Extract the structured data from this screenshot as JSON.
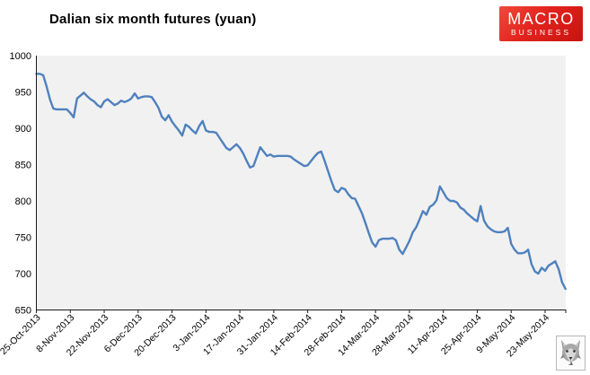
{
  "logo": {
    "line1": "MACRO",
    "line2": "BUSINESS",
    "bg_color": "#e2231d",
    "text_color": "#ffffff"
  },
  "corner_icon": "wolf-head-icon",
  "colors": {
    "line": "#4f81bd",
    "plot_background": "#f1f1f1",
    "axis": "#1a1a1a",
    "label_text": "#000000"
  },
  "chart_data": {
    "type": "line",
    "title": "Dalian six month futures (yuan)",
    "xlabel": "",
    "ylabel": "",
    "ylim": [
      650,
      1000
    ],
    "y_ticks": [
      650,
      700,
      750,
      800,
      850,
      900,
      950,
      1000
    ],
    "grid": false,
    "legend": false,
    "plot_bg": "#f1f1f1",
    "x_tick_labels": [
      "25-Oct-2013",
      "8-Nov-2013",
      "22-Nov-2013",
      "6-Dec-2013",
      "20-Dec-2013",
      "3-Jan-2014",
      "17-Jan-2014",
      "31-Jan-2014",
      "14-Feb-2014",
      "28-Feb-2014",
      "14-Mar-2014",
      "28-Mar-2014",
      "11-Apr-2014",
      "25-Apr-2014",
      "9-May-2014",
      "23-May-2014"
    ],
    "points_per_tick": 10,
    "series": [
      {
        "name": "Dalian six month futures (yuan)",
        "color": "#4f81bd",
        "values": [
          975,
          975,
          973,
          958,
          940,
          927,
          926,
          926,
          926,
          926,
          921,
          915,
          941,
          945,
          949,
          944,
          940,
          937,
          932,
          929,
          937,
          940,
          936,
          932,
          934,
          938,
          936,
          938,
          941,
          948,
          941,
          943,
          944,
          944,
          943,
          936,
          928,
          916,
          911,
          918,
          909,
          903,
          897,
          890,
          905,
          902,
          897,
          893,
          903,
          910,
          897,
          895,
          895,
          894,
          887,
          880,
          873,
          870,
          874,
          878,
          873,
          865,
          855,
          846,
          848,
          861,
          874,
          868,
          862,
          864,
          861,
          862,
          862,
          862,
          862,
          861,
          857,
          854,
          851,
          848,
          849,
          855,
          861,
          866,
          868,
          855,
          841,
          827,
          815,
          812,
          818,
          816,
          809,
          804,
          803,
          793,
          783,
          770,
          756,
          743,
          737,
          746,
          748,
          748,
          748,
          749,
          746,
          733,
          727,
          736,
          745,
          757,
          764,
          775,
          786,
          781,
          792,
          795,
          801,
          820,
          812,
          804,
          800,
          800,
          798,
          791,
          788,
          783,
          779,
          775,
          772,
          793,
          773,
          765,
          761,
          758,
          757,
          757,
          758,
          763,
          741,
          733,
          728,
          728,
          729,
          733,
          713,
          703,
          700,
          708,
          704,
          711,
          714,
          717,
          706,
          688,
          679
        ]
      }
    ]
  }
}
